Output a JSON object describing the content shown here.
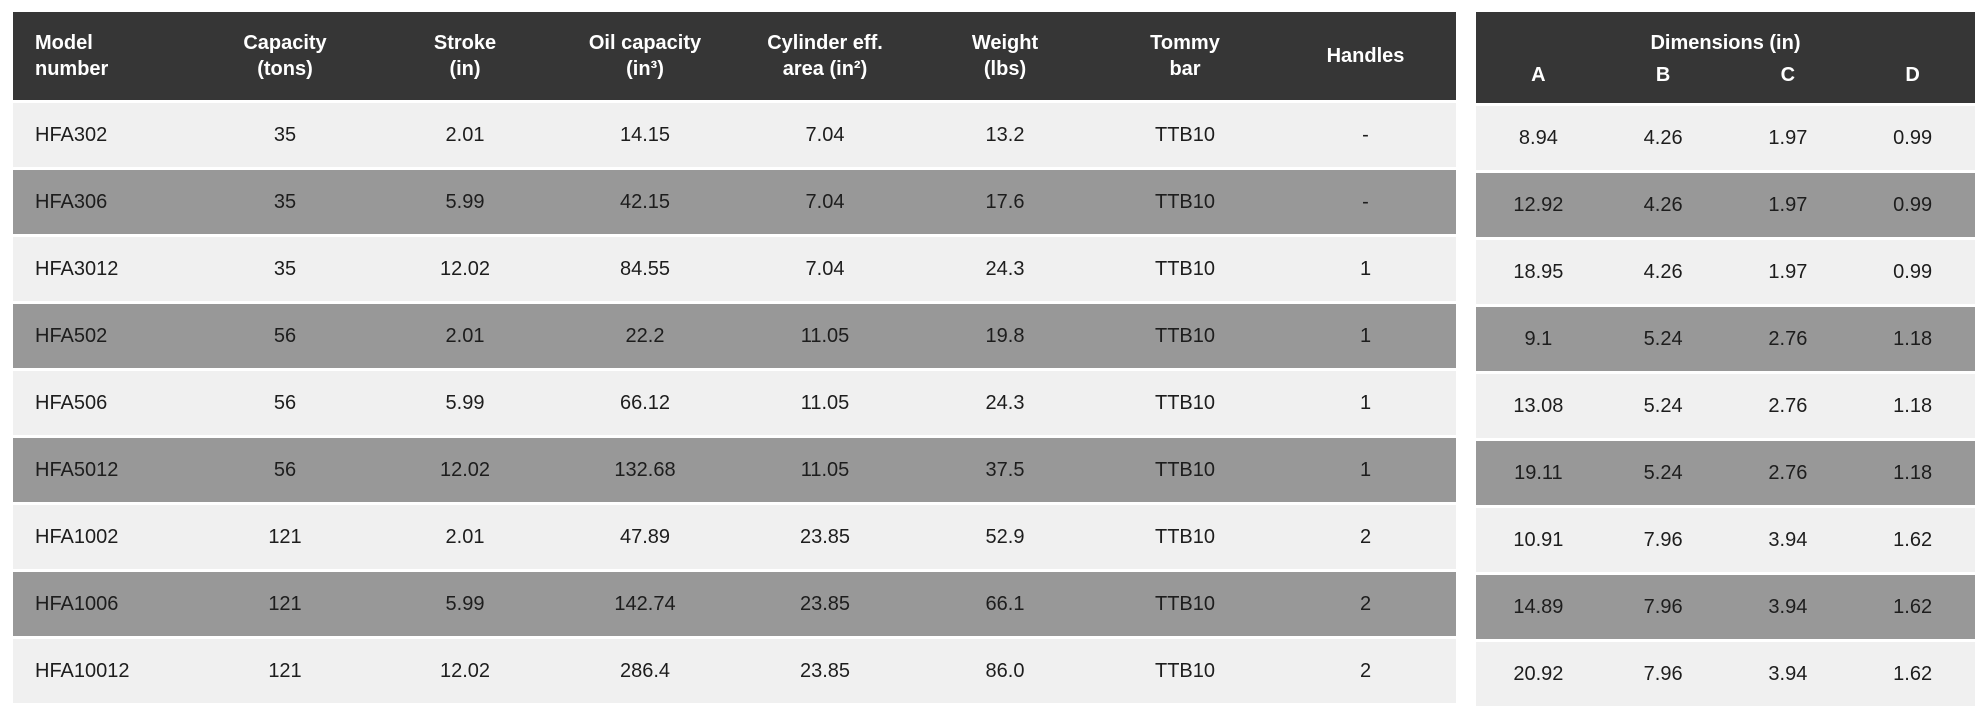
{
  "colors": {
    "header_bg": "#363636",
    "header_text": "#ffffff",
    "row_light": "#f0f0f0",
    "row_gray": "#989898",
    "cell_text": "#1d1d1d"
  },
  "main_table": {
    "headers": {
      "model": "Model\nnumber",
      "capacity": "Capacity\n(tons)",
      "stroke": "Stroke\n(in)",
      "oil": "Oil capacity\n(in³)",
      "area": "Cylinder eff.\narea (in²)",
      "weight": "Weight\n(lbs)",
      "tommy": "Tommy\nbar",
      "handles": "Handles"
    },
    "rows": [
      {
        "model": "HFA302",
        "capacity": "35",
        "stroke": "2.01",
        "oil": "14.15",
        "area": "7.04",
        "weight": "13.2",
        "tommy": "TTB10",
        "handles": "-"
      },
      {
        "model": "HFA306",
        "capacity": "35",
        "stroke": "5.99",
        "oil": "42.15",
        "area": "7.04",
        "weight": "17.6",
        "tommy": "TTB10",
        "handles": "-"
      },
      {
        "model": "HFA3012",
        "capacity": "35",
        "stroke": "12.02",
        "oil": "84.55",
        "area": "7.04",
        "weight": "24.3",
        "tommy": "TTB10",
        "handles": "1"
      },
      {
        "model": "HFA502",
        "capacity": "56",
        "stroke": "2.01",
        "oil": "22.2",
        "area": "11.05",
        "weight": "19.8",
        "tommy": "TTB10",
        "handles": "1"
      },
      {
        "model": "HFA506",
        "capacity": "56",
        "stroke": "5.99",
        "oil": "66.12",
        "area": "11.05",
        "weight": "24.3",
        "tommy": "TTB10",
        "handles": "1"
      },
      {
        "model": "HFA5012",
        "capacity": "56",
        "stroke": "12.02",
        "oil": "132.68",
        "area": "11.05",
        "weight": "37.5",
        "tommy": "TTB10",
        "handles": "1"
      },
      {
        "model": "HFA1002",
        "capacity": "121",
        "stroke": "2.01",
        "oil": "47.89",
        "area": "23.85",
        "weight": "52.9",
        "tommy": "TTB10",
        "handles": "2"
      },
      {
        "model": "HFA1006",
        "capacity": "121",
        "stroke": "5.99",
        "oil": "142.74",
        "area": "23.85",
        "weight": "66.1",
        "tommy": "TTB10",
        "handles": "2"
      },
      {
        "model": "HFA10012",
        "capacity": "121",
        "stroke": "12.02",
        "oil": "286.4",
        "area": "23.85",
        "weight": "86.0",
        "tommy": "TTB10",
        "handles": "2"
      }
    ]
  },
  "dims_table": {
    "title": "Dimensions (in)",
    "headers": [
      "A",
      "B",
      "C",
      "D"
    ],
    "rows": [
      [
        "8.94",
        "4.26",
        "1.97",
        "0.99"
      ],
      [
        "12.92",
        "4.26",
        "1.97",
        "0.99"
      ],
      [
        "18.95",
        "4.26",
        "1.97",
        "0.99"
      ],
      [
        "9.1",
        "5.24",
        "2.76",
        "1.18"
      ],
      [
        "13.08",
        "5.24",
        "2.76",
        "1.18"
      ],
      [
        "19.11",
        "5.24",
        "2.76",
        "1.18"
      ],
      [
        "10.91",
        "7.96",
        "3.94",
        "1.62"
      ],
      [
        "14.89",
        "7.96",
        "3.94",
        "1.62"
      ],
      [
        "20.92",
        "7.96",
        "3.94",
        "1.62"
      ]
    ]
  }
}
